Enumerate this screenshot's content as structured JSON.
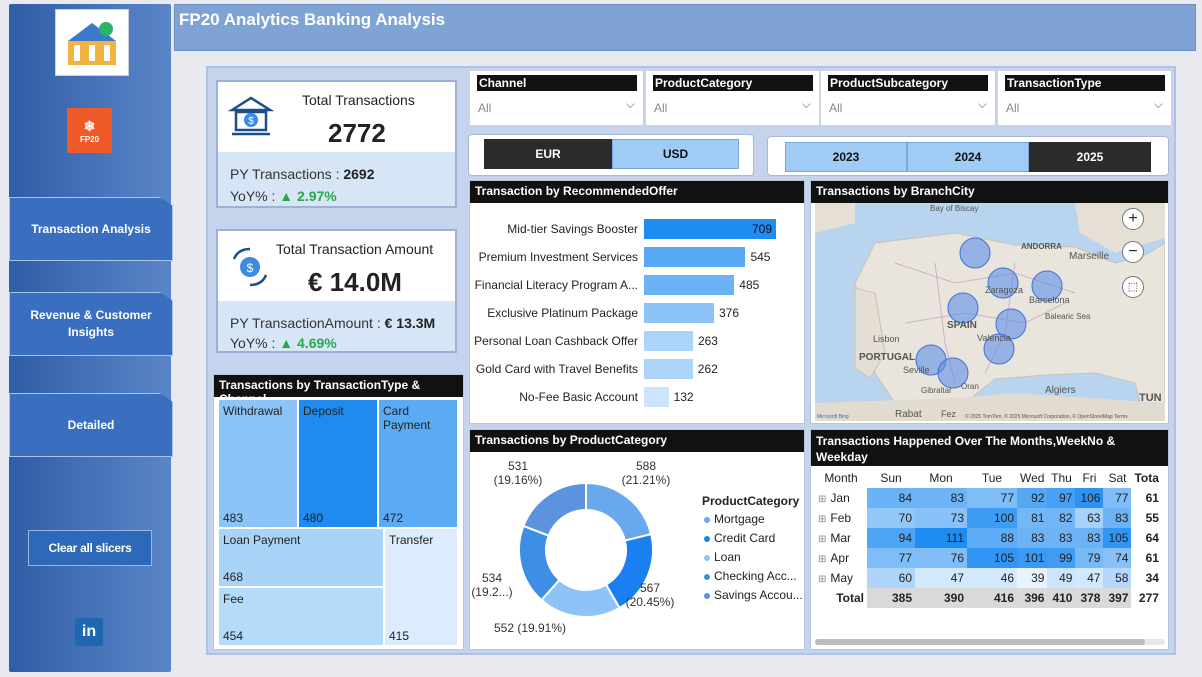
{
  "header": {
    "title": "FP20 Analytics Banking Analysis"
  },
  "sidebar": {
    "logo_text": "FP20",
    "nav": [
      {
        "label": "Transaction Analysis"
      },
      {
        "label": "Revenue & Customer Insights"
      },
      {
        "label": "Detailed"
      }
    ],
    "clear_label": "Clear all slicers",
    "linkedin": "in"
  },
  "kpi1": {
    "title": "Total Transactions",
    "value": "2772",
    "py_label": "PY Transactions :",
    "py_value": "2692",
    "yoy_label": "YoY% :",
    "yoy_value": "▲ 2.97%"
  },
  "kpi2": {
    "title": "Total Transaction Amount",
    "value": "€ 14.0M",
    "py_label": "PY TransactionAmount :",
    "py_value": "€ 13.3M",
    "yoy_label": "YoY% :",
    "yoy_value": "▲ 4.69%"
  },
  "slicers": [
    {
      "label": "Channel",
      "value": "All"
    },
    {
      "label": "ProductCategory",
      "value": "All"
    },
    {
      "label": "ProductSubcategory",
      "value": "All"
    },
    {
      "label": "TransactionType",
      "value": "All"
    }
  ],
  "currency": {
    "options": [
      "EUR",
      "USD"
    ],
    "selected": "EUR"
  },
  "years": {
    "options": [
      "2023",
      "2024",
      "2025"
    ],
    "selected": "2025"
  },
  "treemap": {
    "title": "Transactions by TransactionType & Channel",
    "cells": [
      {
        "name": "Withdrawal",
        "value": "483"
      },
      {
        "name": "Deposit",
        "value": "480"
      },
      {
        "name": "Card Payment",
        "value": "472"
      },
      {
        "name": "Loan Payment",
        "value": "468"
      },
      {
        "name": "Transfer",
        "value": "415"
      },
      {
        "name": "Fee",
        "value": "454"
      }
    ]
  },
  "offer_chart": {
    "title": "Transaction by RecommendedOffer"
  },
  "map": {
    "title": "Transactions by BranchCity",
    "labels": [
      "Bay of Biscay",
      "ANDORRA",
      "Marseille",
      "Zaragoza",
      "Barcelona",
      "SPAIN",
      "Balearic Sea",
      "Lisbon",
      "PORTUGAL",
      "Valencia",
      "Seville",
      "Gibraltar",
      "Oran",
      "Algiers",
      "Rabat",
      "Fez",
      "TUN"
    ],
    "attribution": "© 2025 TomTom, © 2025 Microsoft Corporation, © OpenStreetMap Terms",
    "bing": "Microsoft Bing"
  },
  "donut": {
    "title": "Transactions by ProductCategory",
    "legend_title": "ProductCategory",
    "labels": [
      "531\n(19.16%)",
      "588\n(21.21%)",
      "567\n(20.45%)",
      "552 (19.91%)",
      "534\n(19.2...)"
    ]
  },
  "matrix": {
    "title": "Transactions Happened Over The Months,WeekNo & Weekday",
    "columns": [
      "Month",
      "Sun",
      "Mon",
      "Tue",
      "Wed",
      "Thu",
      "Fri",
      "Sat",
      "Tota"
    ],
    "rows": [
      {
        "month": "Jan",
        "vals": [
          84,
          83,
          77,
          92,
          97,
          106,
          77
        ],
        "total": "61"
      },
      {
        "month": "Feb",
        "vals": [
          70,
          73,
          100,
          81,
          82,
          63,
          83
        ],
        "total": "55"
      },
      {
        "month": "Mar",
        "vals": [
          94,
          111,
          88,
          83,
          83,
          83,
          105
        ],
        "total": "64"
      },
      {
        "month": "Apr",
        "vals": [
          77,
          76,
          105,
          101,
          99,
          79,
          74
        ],
        "total": "61"
      },
      {
        "month": "May",
        "vals": [
          60,
          47,
          46,
          39,
          49,
          47,
          58
        ],
        "total": "34"
      }
    ],
    "total_row": {
      "label": "Total",
      "vals": [
        385,
        390,
        416,
        396,
        410,
        378,
        397
      ],
      "total": "277"
    }
  },
  "chart_data": [
    {
      "type": "bar",
      "title": "Transaction by RecommendedOffer",
      "categories": [
        "Mid-tier Savings Booster",
        "Premium Investment Services",
        "Financial Literacy Program A...",
        "Exclusive Platinum Package",
        "Personal Loan Cashback Offer",
        "Gold Card with Travel Benefits",
        "No-Fee Basic Account"
      ],
      "values": [
        709,
        545,
        485,
        376,
        263,
        262,
        132
      ],
      "orientation": "horizontal"
    },
    {
      "type": "pie",
      "title": "Transactions by ProductCategory",
      "categories": [
        "Mortgage",
        "Credit Card",
        "Loan",
        "Checking Acc...",
        "Savings Accou..."
      ],
      "values": [
        588,
        567,
        552,
        534,
        531
      ],
      "colors": [
        "#6aa8ee",
        "#1a7ff0",
        "#8fc3f7",
        "#3d8fe6",
        "#5b93df"
      ]
    }
  ]
}
